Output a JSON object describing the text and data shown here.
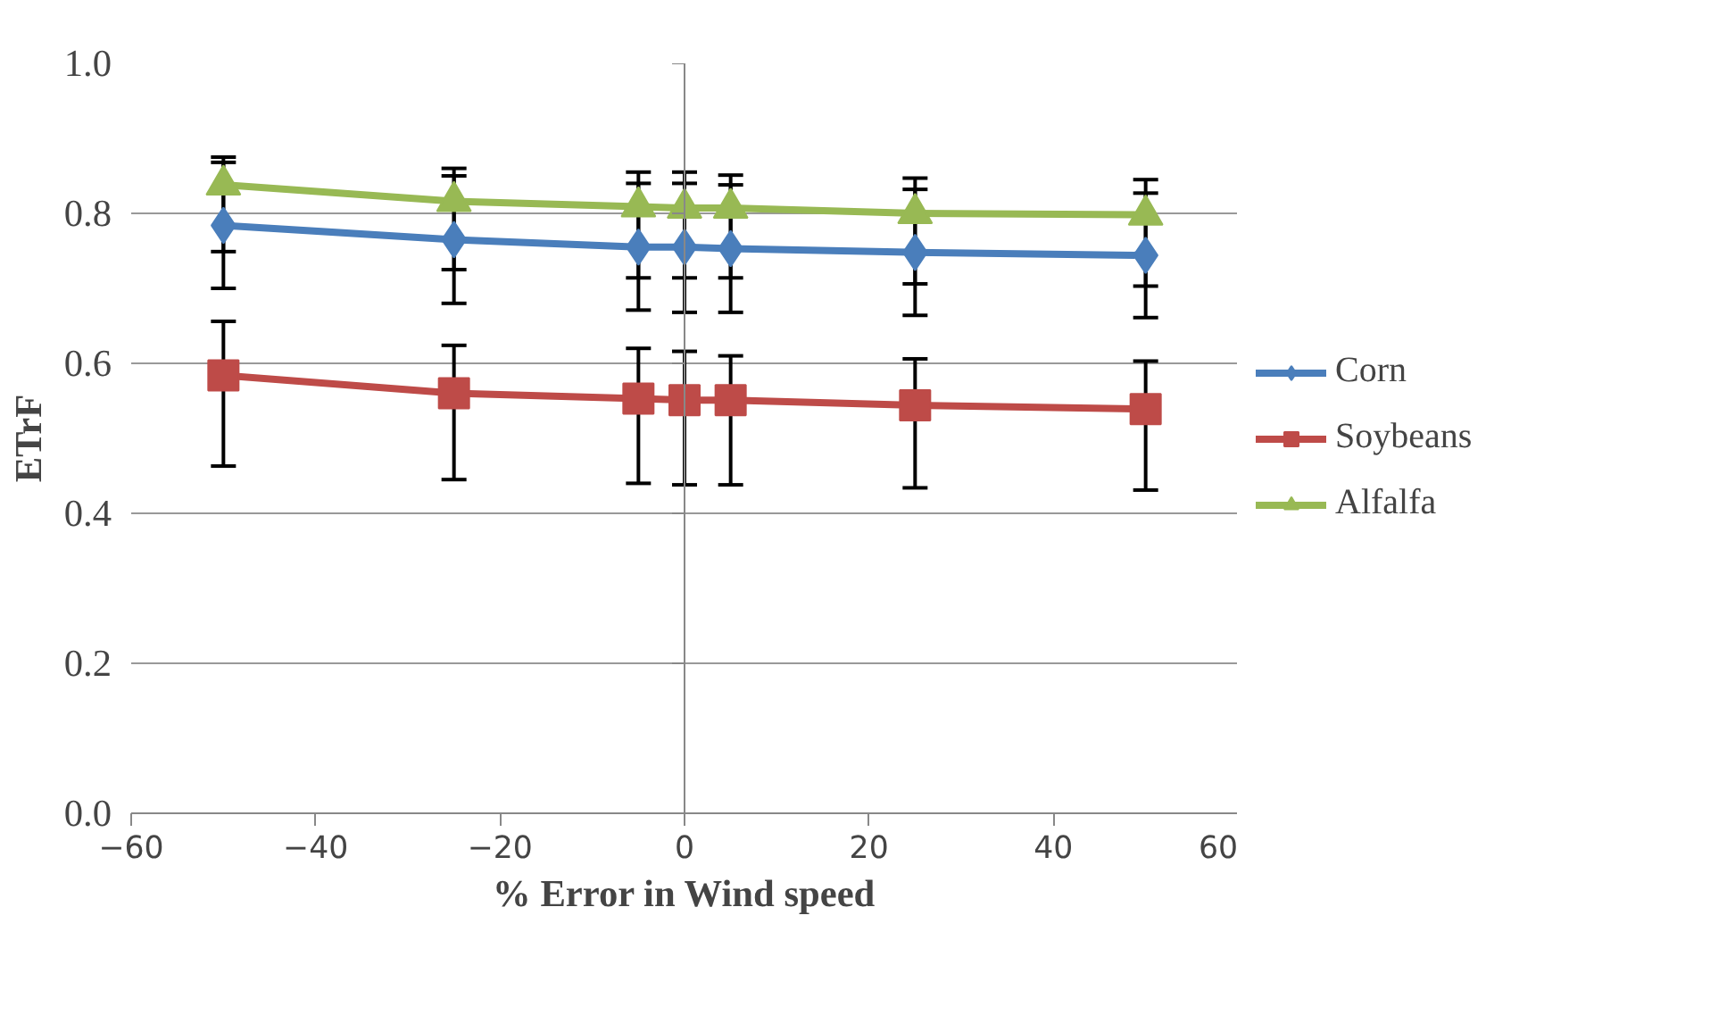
{
  "chart_data": {
    "type": "line",
    "xlabel": "% Error in Wind speed",
    "ylabel": "ETrF",
    "x": [
      -50,
      -25,
      -5,
      0,
      5,
      25,
      50
    ],
    "xlim": [
      -60,
      60
    ],
    "xticks": [
      -60,
      -40,
      -20,
      0,
      20,
      40,
      60
    ],
    "ylim": [
      0,
      1
    ],
    "yticks": [
      {
        "value": 0,
        "label": "0.0"
      },
      0.2,
      0.4,
      0.6,
      0.8,
      {
        "value": 1,
        "label": "1.0"
      }
    ],
    "grid": "y",
    "legend": "right",
    "line_style": "solid",
    "series": [
      {
        "name": "Corn",
        "color": "#4a7ebb",
        "marker": "diamond",
        "values": [
          0.784,
          0.765,
          0.755,
          0.755,
          0.753,
          0.748,
          0.744
        ],
        "errors": [
          [
            0.7,
            0.868
          ],
          [
            0.68,
            0.85
          ],
          [
            0.671,
            0.84
          ],
          [
            0.668,
            0.84
          ],
          [
            0.668,
            0.838
          ],
          [
            0.664,
            0.832
          ],
          [
            0.661,
            0.827
          ]
        ]
      },
      {
        "name": "Soybeans",
        "color": "#be4b48",
        "marker": "square",
        "values": [
          0.584,
          0.56,
          0.553,
          0.551,
          0.551,
          0.544,
          0.539
        ],
        "errors": [
          [
            0.463,
            0.656
          ],
          [
            0.445,
            0.624
          ],
          [
            0.44,
            0.62
          ],
          [
            0.438,
            0.616
          ],
          [
            0.438,
            0.61
          ],
          [
            0.434,
            0.606
          ],
          [
            0.431,
            0.603
          ]
        ]
      },
      {
        "name": "Alfalfa",
        "color": "#98b954",
        "marker": "triangle",
        "values": [
          0.838,
          0.816,
          0.809,
          0.807,
          0.807,
          0.8,
          0.798
        ],
        "errors": [
          [
            0.749,
            0.875
          ],
          [
            0.725,
            0.86
          ],
          [
            0.714,
            0.855
          ],
          [
            0.714,
            0.855
          ],
          [
            0.714,
            0.851
          ],
          [
            0.706,
            0.847
          ],
          [
            0.703,
            0.845
          ]
        ]
      }
    ]
  }
}
